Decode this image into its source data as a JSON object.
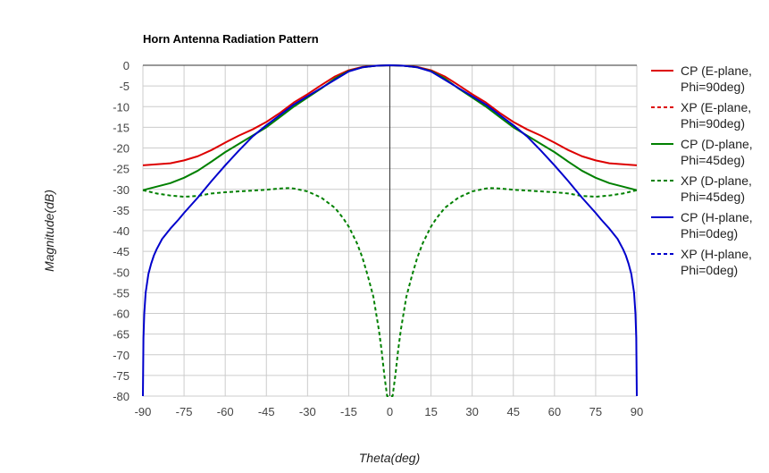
{
  "chart_data": {
    "type": "line",
    "title": "Horn Antenna Radiation Pattern",
    "xlabel": "Theta(deg)",
    "ylabel": "Magnitude(dB)",
    "xlim": [
      -90,
      90
    ],
    "ylim": [
      -80,
      0
    ],
    "xticks": [
      -90,
      -75,
      -60,
      -45,
      -30,
      -15,
      0,
      15,
      30,
      45,
      60,
      75,
      90
    ],
    "yticks": [
      0,
      -5,
      -10,
      -15,
      -20,
      -25,
      -30,
      -35,
      -40,
      -45,
      -50,
      -55,
      -60,
      -65,
      -70,
      -75,
      -80
    ],
    "grid": true,
    "legend_position": "right",
    "series": [
      {
        "name_line1": "CP (E-plane,",
        "name_line2": "Phi=90deg)",
        "color": "#dd0000",
        "dash": "solid",
        "x": [
          -90,
          -80,
          -75,
          -70,
          -65,
          -60,
          -55,
          -50,
          -45,
          -40,
          -35,
          -30,
          -25,
          -20,
          -15,
          -10,
          -5,
          0,
          5,
          10,
          15,
          20,
          25,
          30,
          35,
          40,
          45,
          50,
          55,
          60,
          65,
          70,
          75,
          80,
          90
        ],
        "y": [
          -24.2,
          -23.7,
          -23.0,
          -22.0,
          -20.5,
          -18.7,
          -17.0,
          -15.5,
          -13.7,
          -11.5,
          -9.0,
          -7.0,
          -4.8,
          -2.7,
          -1.2,
          -0.4,
          -0.1,
          0,
          -0.1,
          -0.4,
          -1.2,
          -2.7,
          -4.8,
          -7.0,
          -9.0,
          -11.5,
          -13.7,
          -15.5,
          -17.0,
          -18.7,
          -20.5,
          -22.0,
          -23.0,
          -23.7,
          -24.2
        ]
      },
      {
        "name_line1": "XP (E-plane,",
        "name_line2": "Phi=90deg)",
        "color": "#dd0000",
        "dash": "dashed",
        "x": [],
        "y": []
      },
      {
        "name_line1": "CP (D-plane,",
        "name_line2": "Phi=45deg)",
        "color": "#008000",
        "dash": "solid",
        "x": [
          -90,
          -80,
          -75,
          -70,
          -65,
          -60,
          -55,
          -50,
          -45,
          -40,
          -35,
          -30,
          -25,
          -20,
          -15,
          -10,
          -5,
          0,
          5,
          10,
          15,
          20,
          25,
          30,
          35,
          40,
          45,
          50,
          55,
          60,
          65,
          70,
          75,
          80,
          90
        ],
        "y": [
          -30.2,
          -28.5,
          -27.2,
          -25.5,
          -23.3,
          -21.0,
          -19.0,
          -17.0,
          -15.0,
          -12.5,
          -10.0,
          -7.8,
          -5.6,
          -3.2,
          -1.4,
          -0.5,
          -0.1,
          0,
          -0.1,
          -0.5,
          -1.4,
          -3.2,
          -5.6,
          -7.8,
          -10.0,
          -12.5,
          -15.0,
          -17.0,
          -19.0,
          -21.0,
          -23.3,
          -25.5,
          -27.2,
          -28.5,
          -30.2
        ]
      },
      {
        "name_line1": "XP (D-plane,",
        "name_line2": "Phi=45deg)",
        "color": "#008000",
        "dash": "dashed",
        "x": [
          -90,
          -85,
          -80,
          -75,
          -70,
          -65,
          -60,
          -55,
          -50,
          -45,
          -40,
          -37,
          -35,
          -30,
          -25,
          -20,
          -17,
          -15,
          -12,
          -10,
          -8,
          -6,
          -5,
          -4,
          -3,
          -2,
          -1,
          0,
          1,
          2,
          3,
          4,
          5,
          6,
          8,
          10,
          12,
          15,
          17,
          20,
          25,
          30,
          35,
          37,
          40,
          45,
          50,
          55,
          60,
          65,
          70,
          75,
          80,
          85,
          90
        ],
        "y": [
          -30.2,
          -31.0,
          -31.5,
          -31.8,
          -31.6,
          -31.0,
          -30.7,
          -30.5,
          -30.3,
          -30.1,
          -29.8,
          -29.7,
          -29.8,
          -30.5,
          -32.0,
          -34.5,
          -37.0,
          -39.0,
          -43.0,
          -46.5,
          -51.0,
          -56.0,
          -60.0,
          -64.0,
          -69.0,
          -75.0,
          -80.0,
          -80.0,
          -80.0,
          -75.0,
          -69.0,
          -64.0,
          -60.0,
          -56.0,
          -51.0,
          -46.5,
          -43.0,
          -39.0,
          -37.0,
          -34.5,
          -32.0,
          -30.5,
          -29.8,
          -29.7,
          -29.8,
          -30.1,
          -30.3,
          -30.5,
          -30.7,
          -31.0,
          -31.6,
          -31.8,
          -31.5,
          -31.0,
          -30.2
        ]
      },
      {
        "name_line1": "CP (H-plane,",
        "name_line2": "Phi=0deg)",
        "color": "#0000cc",
        "dash": "solid",
        "x": [
          -90,
          -89.8,
          -89.5,
          -89,
          -88,
          -87,
          -86,
          -85,
          -83,
          -80,
          -77,
          -75,
          -70,
          -65,
          -60,
          -55,
          -50,
          -45,
          -40,
          -35,
          -30,
          -25,
          -20,
          -15,
          -10,
          -5,
          0,
          5,
          10,
          15,
          20,
          25,
          30,
          35,
          40,
          45,
          50,
          55,
          60,
          65,
          70,
          75,
          77,
          80,
          83,
          85,
          86,
          87,
          88,
          89,
          89.5,
          89.8,
          90
        ],
        "y": [
          -80.0,
          -66.0,
          -60.0,
          -55.0,
          -50.5,
          -48.0,
          -46.0,
          -44.5,
          -42.0,
          -39.5,
          -37.3,
          -35.7,
          -32.0,
          -28.0,
          -24.2,
          -20.6,
          -17.2,
          -14.5,
          -12.0,
          -9.5,
          -7.5,
          -5.5,
          -3.5,
          -1.5,
          -0.5,
          -0.1,
          0,
          -0.1,
          -0.5,
          -1.5,
          -3.5,
          -5.5,
          -7.5,
          -9.5,
          -12.0,
          -14.5,
          -17.2,
          -20.6,
          -24.2,
          -28.0,
          -32.0,
          -35.7,
          -37.3,
          -39.5,
          -42.0,
          -44.5,
          -46.0,
          -48.0,
          -50.5,
          -55.0,
          -60.0,
          -66.0,
          -80.0
        ]
      },
      {
        "name_line1": "XP (H-plane,",
        "name_line2": "Phi=0deg)",
        "color": "#0000cc",
        "dash": "dashed",
        "x": [],
        "y": []
      }
    ]
  }
}
